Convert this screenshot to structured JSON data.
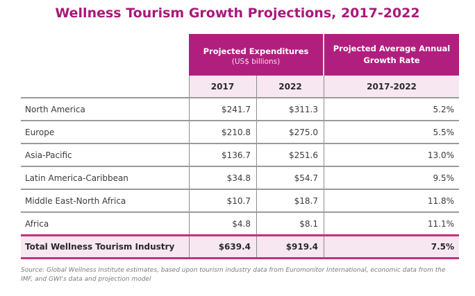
{
  "title": "Wellness Tourism Growth Projections, 2017-2022",
  "colors": {
    "accent": "#B01F7E",
    "title": "#A8197A",
    "subheader_bg": "#F6E7F0"
  },
  "header": {
    "expenditures": {
      "label": "Projected Expenditures",
      "unit": "(US$ billions)"
    },
    "growth": {
      "line1": "Projected Average Annual",
      "line2": "Growth Rate"
    },
    "sub": {
      "year1": "2017",
      "year2": "2022",
      "range": "2017-2022"
    }
  },
  "rows": [
    {
      "region": "North America",
      "y2017": "$241.7",
      "y2022": "$311.3",
      "growth": "5.2%"
    },
    {
      "region": "Europe",
      "y2017": "$210.8",
      "y2022": "$275.0",
      "growth": "5.5%"
    },
    {
      "region": "Asia-Pacific",
      "y2017": "$136.7",
      "y2022": "$251.6",
      "growth": "13.0%"
    },
    {
      "region": "Latin America-Caribbean",
      "y2017": "$34.8",
      "y2022": "$54.7",
      "growth": "9.5%"
    },
    {
      "region": "Middle East-North Africa",
      "y2017": "$10.7",
      "y2022": "$18.7",
      "growth": "11.8%"
    },
    {
      "region": "Africa",
      "y2017": "$4.8",
      "y2022": "$8.1",
      "growth": "11.1%"
    }
  ],
  "total": {
    "region": "Total Wellness Tourism Industry",
    "y2017": "$639.4",
    "y2022": "$919.4",
    "growth": "7.5%"
  },
  "source": "Source: Global Wellness Institute estimates, based upon tourism industry data from Euromonitor International, economic data from the IMF, and GWI's data and projection model"
}
